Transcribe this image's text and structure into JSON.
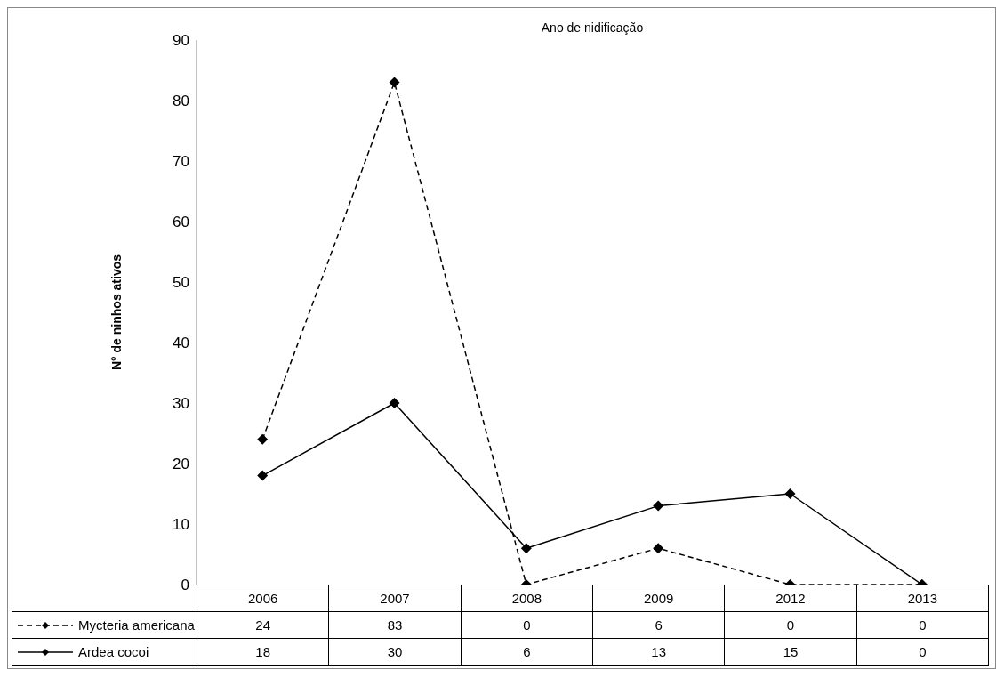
{
  "chart_data": {
    "type": "line",
    "title": "Ano de nidificação",
    "ylabel": "N° de ninhos ativos",
    "categories": [
      "2006",
      "2007",
      "2008",
      "2009",
      "2012",
      "2013"
    ],
    "series": [
      {
        "name": "Mycteria americana",
        "color": "#000000",
        "line_style": "dashed",
        "values": [
          24,
          83,
          0,
          6,
          0,
          0
        ]
      },
      {
        "name": "Ardea cocoi",
        "color": "#000000",
        "line_style": "solid",
        "values": [
          18,
          30,
          6,
          13,
          15,
          0
        ]
      }
    ],
    "ylim": [
      0,
      90
    ],
    "yticks": [
      0,
      10,
      20,
      30,
      40,
      50,
      60,
      70,
      80,
      90
    ],
    "marker": "diamond",
    "grid": false,
    "legend": "bottom",
    "data_labels": true
  }
}
